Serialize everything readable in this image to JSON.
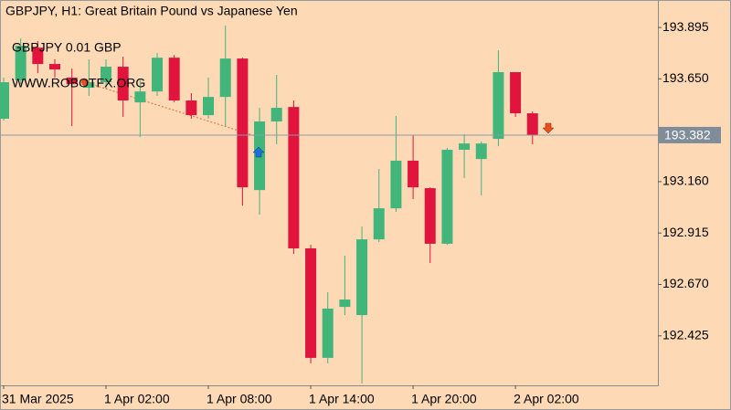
{
  "chart_data": {
    "type": "candlestick",
    "title": "GBPJPY, H1:  Great Britain Pound vs Japanese Yen",
    "annotations": [
      "GBPJPY 0.01 GBP",
      "WWW.ROBOTFX.ORG"
    ],
    "categories": [
      "31 Mar 2025",
      null,
      null,
      null,
      null,
      null,
      "1 Apr 02:00",
      null,
      null,
      null,
      null,
      null,
      "1 Apr 08:00",
      null,
      null,
      null,
      null,
      null,
      "1 Apr 14:00",
      null,
      null,
      null,
      null,
      null,
      "1 Apr 20:00",
      null,
      null,
      null,
      null,
      null,
      "2 Apr 02:00",
      null
    ],
    "open": [
      193.46,
      193.643,
      193.799,
      193.721,
      193.656,
      193.608,
      193.634,
      193.708,
      193.538,
      193.59,
      193.751,
      193.547,
      193.477,
      193.564,
      193.747,
      193.12,
      193.447,
      193.516,
      192.842,
      192.32,
      192.563,
      192.524,
      192.885,
      193.033,
      193.26,
      193.129,
      192.864,
      193.312,
      193.268,
      193.364,
      193.682,
      193.486
    ],
    "high": [
      193.656,
      193.843,
      193.83,
      193.743,
      193.699,
      193.743,
      193.743,
      193.756,
      193.643,
      193.773,
      193.764,
      193.582,
      193.656,
      193.904,
      193.751,
      193.512,
      193.669,
      193.547,
      192.859,
      192.633,
      192.807,
      192.946,
      193.22,
      193.473,
      193.381,
      193.133,
      193.321,
      193.386,
      193.351,
      193.786,
      193.682,
      193.495
    ],
    "low": [
      193.451,
      193.625,
      193.677,
      193.656,
      193.425,
      193.569,
      193.603,
      193.469,
      193.373,
      193.569,
      193.538,
      193.46,
      193.46,
      193.425,
      193.046,
      193.003,
      193.338,
      192.816,
      192.294,
      192.294,
      192.524,
      192.198,
      192.872,
      193.016,
      193.077,
      192.772,
      192.859,
      193.177,
      193.094,
      193.329,
      193.469,
      193.338
    ],
    "close": [
      193.634,
      193.808,
      193.721,
      193.695,
      193.625,
      193.634,
      193.708,
      193.547,
      193.59,
      193.751,
      193.547,
      193.477,
      193.564,
      193.747,
      193.133,
      193.447,
      193.512,
      192.842,
      192.32,
      192.555,
      192.598,
      192.885,
      193.033,
      193.26,
      193.133,
      192.864,
      193.312,
      193.342,
      193.342,
      193.682,
      193.486,
      193.382
    ],
    "up_color": "#41b57a",
    "down_color": "#e0143c",
    "price_line": 193.382,
    "ylim": [
      192.189,
      194.026
    ],
    "yticks": [
      193.895,
      {
        "value": 193.65,
        "label": "193.650"
      },
      {
        "value": 193.16,
        "label": "193.160"
      },
      192.915,
      {
        "value": 192.67,
        "label": "192.670"
      },
      192.425
    ]
  }
}
